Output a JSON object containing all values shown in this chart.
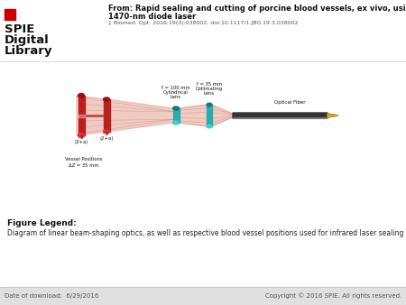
{
  "title_line1": "From: Rapid sealing and cutting of porcine blood vessels, ex vivo, using a high-power,",
  "title_line2": "1470-nm diode laser",
  "citation": "J. Biomed. Opt. 2016;19(3):038002. doi:10.1117/1.JBO.19.3.038002",
  "figure_legend_label": "Figure Legend:",
  "figure_legend_text": "Diagram of linear beam-shaping optics, as well as respective blood vessel positions used for infrared laser sealing and cutting.",
  "footer_left": "Date of download:  6/29/2016",
  "footer_right": "Copyright © 2016 SPIE. All rights reserved.",
  "spie_line1": "SPIE",
  "spie_line2": "Digital",
  "spie_line3": "Library",
  "bg_color": "#ffffff"
}
